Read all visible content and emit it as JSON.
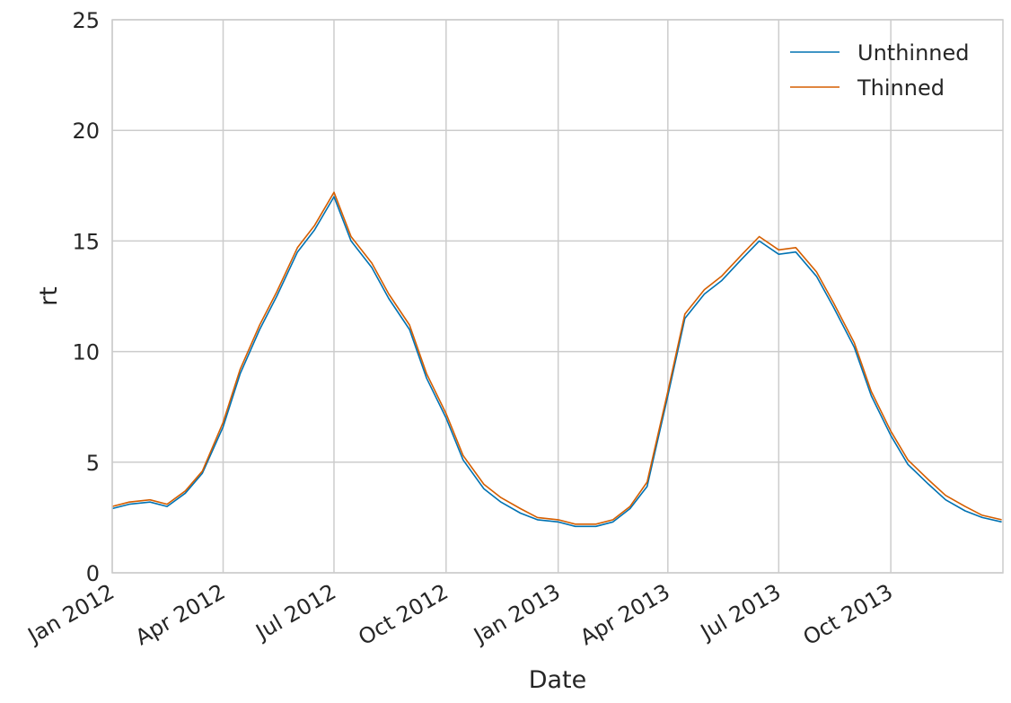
{
  "chart_data": {
    "type": "line",
    "xlabel": "Date",
    "ylabel": "rt",
    "xlim": [
      "2012-01-01",
      "2014-01-01"
    ],
    "ylim": [
      0,
      25
    ],
    "grid": true,
    "legend_position": "top-right",
    "x_ticks": [
      {
        "date": "2012-01-01",
        "label": "Jan 2012"
      },
      {
        "date": "2012-04-01",
        "label": "Apr 2012"
      },
      {
        "date": "2012-07-01",
        "label": "Jul 2012"
      },
      {
        "date": "2012-10-01",
        "label": "Oct 2012"
      },
      {
        "date": "2013-01-01",
        "label": "Jan 2013"
      },
      {
        "date": "2013-04-01",
        "label": "Apr 2013"
      },
      {
        "date": "2013-07-01",
        "label": "Jul 2013"
      },
      {
        "date": "2013-10-01",
        "label": "Oct 2013"
      }
    ],
    "y_ticks": [
      {
        "value": 0,
        "label": "0"
      },
      {
        "value": 5,
        "label": "5"
      },
      {
        "value": 10,
        "label": "10"
      },
      {
        "value": 15,
        "label": "15"
      },
      {
        "value": 20,
        "label": "20"
      },
      {
        "value": 25,
        "label": "25"
      }
    ],
    "x": [
      "2012-01-01",
      "2012-01-15",
      "2012-02-01",
      "2012-02-15",
      "2012-03-01",
      "2012-03-15",
      "2012-04-01",
      "2012-04-15",
      "2012-05-01",
      "2012-05-15",
      "2012-06-01",
      "2012-06-15",
      "2012-07-01",
      "2012-07-15",
      "2012-08-01",
      "2012-08-15",
      "2012-09-01",
      "2012-09-15",
      "2012-10-01",
      "2012-10-15",
      "2012-11-01",
      "2012-11-15",
      "2012-12-01",
      "2012-12-15",
      "2013-01-01",
      "2013-01-15",
      "2013-02-01",
      "2013-02-15",
      "2013-03-01",
      "2013-03-15",
      "2013-04-01",
      "2013-04-15",
      "2013-05-01",
      "2013-05-15",
      "2013-06-01",
      "2013-06-15",
      "2013-07-01",
      "2013-07-15",
      "2013-08-01",
      "2013-08-15",
      "2013-09-01",
      "2013-09-15",
      "2013-10-01",
      "2013-10-15",
      "2013-11-01",
      "2013-11-15",
      "2013-12-01",
      "2013-12-15",
      "2013-12-31"
    ],
    "series": [
      {
        "name": "Unthinned",
        "color": "#0072b2",
        "values": [
          2.9,
          3.1,
          3.2,
          3.0,
          3.6,
          4.5,
          6.6,
          9.0,
          11.0,
          12.5,
          14.5,
          15.5,
          17.0,
          15.0,
          13.8,
          12.4,
          11.0,
          8.8,
          7.0,
          5.1,
          3.8,
          3.2,
          2.7,
          2.4,
          2.3,
          2.1,
          2.1,
          2.3,
          2.9,
          3.9,
          8.0,
          11.5,
          12.6,
          13.2,
          14.2,
          15.0,
          14.4,
          14.5,
          13.4,
          12.0,
          10.2,
          8.0,
          6.2,
          4.9,
          4.0,
          3.3,
          2.8,
          2.5,
          2.3
        ]
      },
      {
        "name": "Thinned",
        "color": "#d55e00",
        "values": [
          3.0,
          3.2,
          3.3,
          3.1,
          3.7,
          4.6,
          6.8,
          9.2,
          11.2,
          12.7,
          14.7,
          15.7,
          17.2,
          15.2,
          14.0,
          12.6,
          11.2,
          9.0,
          7.2,
          5.3,
          4.0,
          3.4,
          2.9,
          2.5,
          2.4,
          2.2,
          2.2,
          2.4,
          3.0,
          4.1,
          8.2,
          11.7,
          12.8,
          13.4,
          14.4,
          15.2,
          14.6,
          14.7,
          13.6,
          12.2,
          10.4,
          8.2,
          6.4,
          5.1,
          4.2,
          3.5,
          3.0,
          2.6,
          2.4
        ]
      }
    ]
  }
}
